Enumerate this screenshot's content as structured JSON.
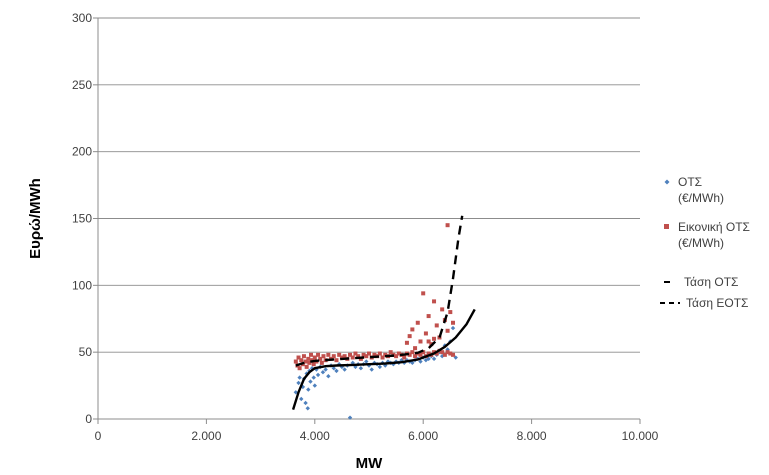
{
  "chart_data": {
    "type": "scatter",
    "title": "",
    "xlabel": "MW",
    "ylabel": "Ευρώ/MWh",
    "xlim": [
      0,
      10000
    ],
    "ylim": [
      0,
      300
    ],
    "x_ticks": [
      0,
      2000,
      4000,
      6000,
      8000,
      10000
    ],
    "x_tick_labels": [
      "0",
      "2.000",
      "4.000",
      "6.000",
      "8.000",
      "10.000"
    ],
    "y_ticks": [
      0,
      50,
      100,
      150,
      200,
      250,
      300
    ],
    "y_tick_labels": [
      "0",
      "50",
      "100",
      "150",
      "200",
      "250",
      "300"
    ],
    "grid": "horizontal",
    "legend_position": "right",
    "series": [
      {
        "name": "ΟΤΣ (€/MWh)",
        "legend_lines": [
          "ΟΤΣ",
          "(€/MWh)"
        ],
        "kind": "scatter",
        "marker": "diamond",
        "color": "#4f81bd",
        "points": [
          [
            3650,
            20
          ],
          [
            3700,
            27
          ],
          [
            3720,
            31
          ],
          [
            3750,
            15
          ],
          [
            3780,
            24
          ],
          [
            3800,
            30
          ],
          [
            3830,
            12
          ],
          [
            3850,
            34
          ],
          [
            3870,
            8
          ],
          [
            3880,
            22
          ],
          [
            3900,
            36
          ],
          [
            3920,
            28
          ],
          [
            3950,
            38
          ],
          [
            3980,
            31
          ],
          [
            4000,
            25
          ],
          [
            4030,
            37
          ],
          [
            4060,
            33
          ],
          [
            4100,
            39
          ],
          [
            4150,
            35
          ],
          [
            4200,
            37
          ],
          [
            4250,
            32
          ],
          [
            4300,
            40
          ],
          [
            4350,
            38
          ],
          [
            4400,
            36
          ],
          [
            4450,
            41
          ],
          [
            4500,
            39
          ],
          [
            4550,
            37
          ],
          [
            4600,
            40
          ],
          [
            4650,
            1
          ],
          [
            4700,
            42
          ],
          [
            4750,
            39
          ],
          [
            4800,
            41
          ],
          [
            4850,
            38
          ],
          [
            4900,
            41
          ],
          [
            4950,
            43
          ],
          [
            5000,
            40
          ],
          [
            5050,
            37
          ],
          [
            5100,
            42
          ],
          [
            5150,
            41
          ],
          [
            5200,
            39
          ],
          [
            5250,
            42
          ],
          [
            5300,
            40
          ],
          [
            5350,
            43
          ],
          [
            5400,
            42
          ],
          [
            5450,
            41
          ],
          [
            5500,
            43
          ],
          [
            5550,
            42
          ],
          [
            5600,
            44
          ],
          [
            5650,
            42
          ],
          [
            5700,
            44
          ],
          [
            5750,
            43
          ],
          [
            5800,
            42
          ],
          [
            5850,
            44
          ],
          [
            5900,
            45
          ],
          [
            5950,
            43
          ],
          [
            6000,
            46
          ],
          [
            6050,
            44
          ],
          [
            6100,
            45
          ],
          [
            6150,
            47
          ],
          [
            6200,
            45
          ],
          [
            6250,
            48
          ],
          [
            6300,
            50
          ],
          [
            6350,
            47
          ],
          [
            6400,
            55
          ],
          [
            6450,
            52
          ],
          [
            6500,
            58
          ],
          [
            6550,
            68
          ],
          [
            6600,
            46
          ]
        ]
      },
      {
        "name": "Εικονική ΟΤΣ (€/MWh)",
        "legend_lines": [
          "Εικονική ΟΤΣ",
          "(€/MWh)"
        ],
        "kind": "scatter",
        "marker": "square",
        "color": "#c0504d",
        "points": [
          [
            3650,
            43
          ],
          [
            3680,
            40
          ],
          [
            3700,
            46
          ],
          [
            3720,
            38
          ],
          [
            3750,
            44
          ],
          [
            3780,
            41
          ],
          [
            3800,
            47
          ],
          [
            3830,
            43
          ],
          [
            3850,
            39
          ],
          [
            3880,
            45
          ],
          [
            3900,
            42
          ],
          [
            3930,
            48
          ],
          [
            3950,
            44
          ],
          [
            3980,
            41
          ],
          [
            4000,
            46
          ],
          [
            4030,
            43
          ],
          [
            4060,
            48
          ],
          [
            4100,
            45
          ],
          [
            4130,
            42
          ],
          [
            4160,
            47
          ],
          [
            4200,
            44
          ],
          [
            4250,
            48
          ],
          [
            4300,
            45
          ],
          [
            4350,
            47
          ],
          [
            4400,
            44
          ],
          [
            4450,
            48
          ],
          [
            4500,
            46
          ],
          [
            4550,
            47
          ],
          [
            4600,
            45
          ],
          [
            4650,
            48
          ],
          [
            4700,
            46
          ],
          [
            4750,
            49
          ],
          [
            4800,
            47
          ],
          [
            4850,
            45
          ],
          [
            4900,
            48
          ],
          [
            4950,
            47
          ],
          [
            5000,
            49
          ],
          [
            5050,
            46
          ],
          [
            5100,
            48
          ],
          [
            5150,
            47
          ],
          [
            5200,
            49
          ],
          [
            5250,
            46
          ],
          [
            5300,
            48
          ],
          [
            5350,
            47
          ],
          [
            5400,
            50
          ],
          [
            5450,
            48
          ],
          [
            5500,
            47
          ],
          [
            5550,
            49
          ],
          [
            5600,
            48
          ],
          [
            5650,
            46
          ],
          [
            5700,
            49
          ],
          [
            5750,
            48
          ],
          [
            5800,
            50
          ],
          [
            5850,
            47
          ],
          [
            5900,
            49
          ],
          [
            5950,
            48
          ],
          [
            6000,
            50
          ],
          [
            6050,
            47
          ],
          [
            6100,
            49
          ],
          [
            6150,
            48
          ],
          [
            6200,
            50
          ],
          [
            6250,
            49
          ],
          [
            6300,
            51
          ],
          [
            6350,
            50
          ],
          [
            6400,
            48
          ],
          [
            6450,
            50
          ],
          [
            6500,
            49
          ],
          [
            6550,
            48
          ],
          [
            5700,
            57
          ],
          [
            5750,
            62
          ],
          [
            5800,
            67
          ],
          [
            5850,
            53
          ],
          [
            5900,
            72
          ],
          [
            5950,
            58
          ],
          [
            6000,
            94
          ],
          [
            6050,
            64
          ],
          [
            6100,
            77
          ],
          [
            6150,
            56
          ],
          [
            6200,
            88
          ],
          [
            6250,
            70
          ],
          [
            6300,
            61
          ],
          [
            6350,
            82
          ],
          [
            6400,
            74
          ],
          [
            6450,
            66
          ],
          [
            6500,
            80
          ],
          [
            6550,
            72
          ],
          [
            6200,
            60
          ],
          [
            6100,
            58
          ],
          [
            6450,
            145
          ]
        ]
      },
      {
        "name": "Τάση ΟΤΣ",
        "kind": "trendline",
        "style": "solid",
        "color": "#000000",
        "points": [
          [
            3600,
            7
          ],
          [
            3700,
            20
          ],
          [
            3800,
            30
          ],
          [
            3900,
            35
          ],
          [
            4000,
            38
          ],
          [
            4200,
            39.5
          ],
          [
            4400,
            40
          ],
          [
            4700,
            40.5
          ],
          [
            5000,
            41
          ],
          [
            5300,
            41.5
          ],
          [
            5600,
            42.5
          ],
          [
            5900,
            44.5
          ],
          [
            6200,
            49
          ],
          [
            6400,
            54
          ],
          [
            6600,
            61
          ],
          [
            6800,
            71
          ],
          [
            6950,
            82
          ]
        ]
      },
      {
        "name": "Τάση ΕΟΤΣ",
        "kind": "trendline",
        "style": "dashed",
        "color": "#000000",
        "points": [
          [
            3650,
            40
          ],
          [
            3800,
            42
          ],
          [
            4000,
            43.5
          ],
          [
            4500,
            45
          ],
          [
            5000,
            46.2
          ],
          [
            5500,
            47.5
          ],
          [
            5900,
            49.5
          ],
          [
            6100,
            53
          ],
          [
            6300,
            61
          ],
          [
            6450,
            80
          ],
          [
            6550,
            105
          ],
          [
            6650,
            135
          ],
          [
            6720,
            152
          ]
        ]
      }
    ]
  }
}
